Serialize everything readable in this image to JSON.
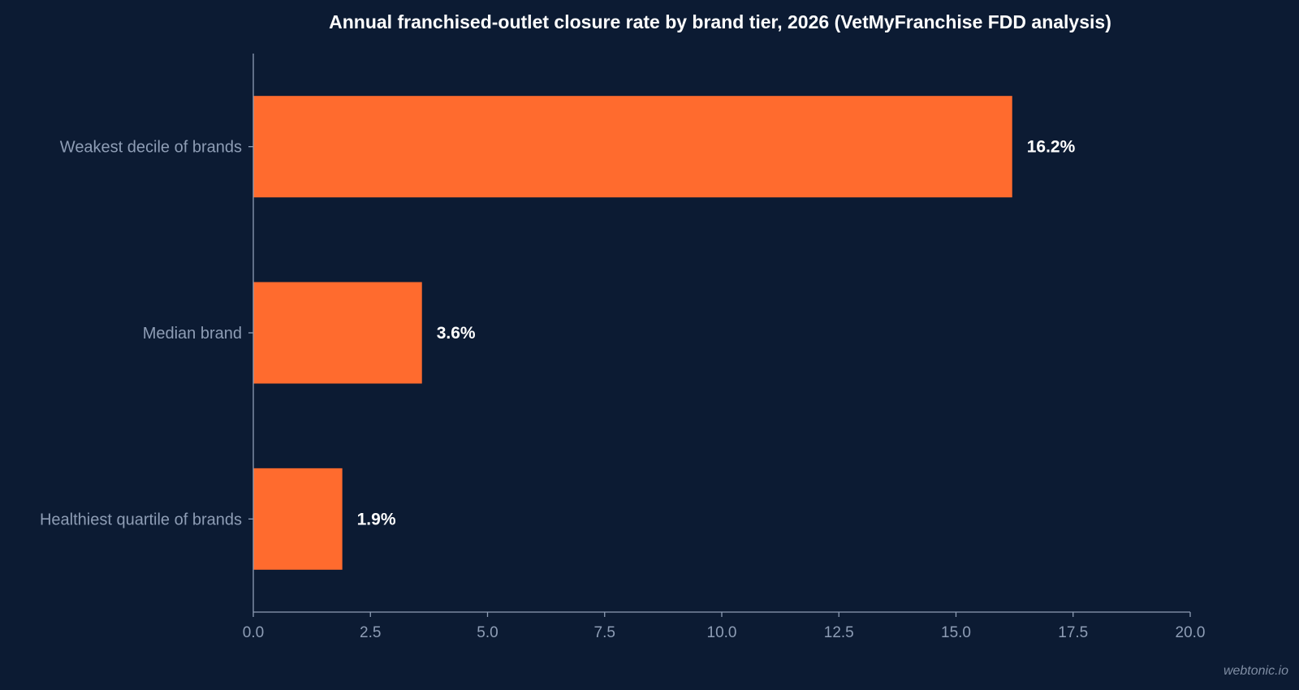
{
  "chart_data": {
    "type": "bar",
    "orientation": "horizontal",
    "title": "Annual franchised-outlet closure rate by brand tier, 2026 (VetMyFranchise FDD analysis)",
    "xlabel": "",
    "ylabel": "",
    "categories": [
      "Weakest decile of brands",
      "Median brand",
      "Healthiest quartile of brands"
    ],
    "values": [
      16.2,
      3.6,
      1.9
    ],
    "data_labels": [
      "16.2%",
      "3.6%",
      "1.9%"
    ],
    "xlim": [
      0,
      20
    ],
    "x_ticks": [
      "0.0",
      "2.5",
      "5.0",
      "7.5",
      "10.0",
      "12.5",
      "15.0",
      "17.5",
      "20.0"
    ],
    "grid": false,
    "legend": "none",
    "colors": {
      "background": "#0c1b33",
      "bar": "#ff6b2e",
      "axis": "#8e9db5",
      "text": "#ffffff",
      "tick_text": "#8e9db5"
    }
  },
  "watermark": "webtonic.io"
}
